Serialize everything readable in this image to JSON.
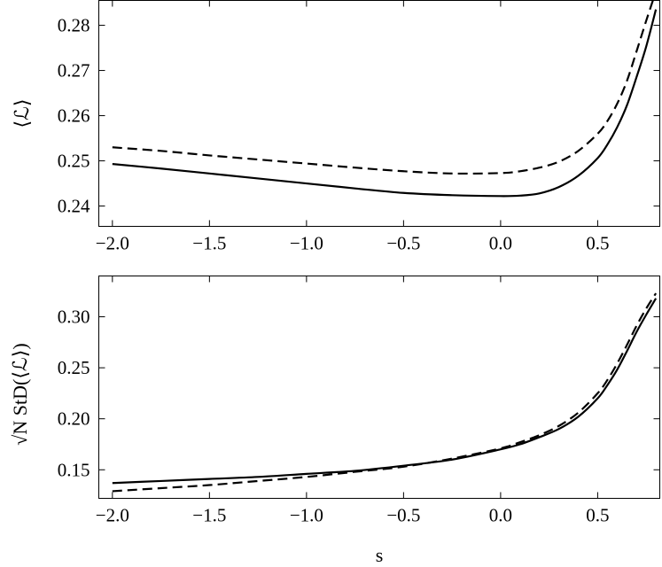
{
  "chart_data": [
    {
      "type": "line",
      "xlabel": "",
      "ylabel": "⟨ℒ⟩",
      "xlim": [
        -2.07,
        0.82
      ],
      "ylim": [
        0.2355,
        0.2855
      ],
      "xticks": [
        -2.0,
        -1.5,
        -1.0,
        -0.5,
        0.0,
        0.5
      ],
      "xtick_labels": [
        "−2.0",
        "−1.5",
        "−1.0",
        "−0.5",
        "0.0",
        "0.5"
      ],
      "yticks": [
        0.24,
        0.25,
        0.26,
        0.27,
        0.28
      ],
      "ytick_labels": [
        "0.24",
        "0.25",
        "0.26",
        "0.27",
        "0.28"
      ],
      "series": [
        {
          "style": "solid",
          "x": [
            -2.0,
            -1.75,
            -1.5,
            -1.25,
            -1.0,
            -0.75,
            -0.5,
            -0.25,
            0.0,
            0.1,
            0.2,
            0.3,
            0.4,
            0.5,
            0.55,
            0.6,
            0.65,
            0.7,
            0.75,
            0.8
          ],
          "y": [
            0.2493,
            0.2483,
            0.2472,
            0.2461,
            0.245,
            0.2439,
            0.2429,
            0.2424,
            0.2422,
            0.2423,
            0.2428,
            0.2442,
            0.2467,
            0.2506,
            0.2536,
            0.2574,
            0.2622,
            0.2685,
            0.2753,
            0.2835
          ]
        },
        {
          "style": "dashed",
          "x": [
            -2.0,
            -1.75,
            -1.5,
            -1.25,
            -1.0,
            -0.75,
            -0.5,
            -0.25,
            0.0,
            0.1,
            0.2,
            0.3,
            0.4,
            0.5,
            0.55,
            0.6,
            0.65,
            0.7,
            0.75,
            0.8
          ],
          "y": [
            0.253,
            0.2522,
            0.2512,
            0.2503,
            0.2494,
            0.2485,
            0.2477,
            0.2472,
            0.2473,
            0.2477,
            0.2485,
            0.2498,
            0.2522,
            0.256,
            0.2588,
            0.2626,
            0.2676,
            0.2742,
            0.281,
            0.2875
          ]
        }
      ]
    },
    {
      "type": "line",
      "xlabel": "s",
      "ylabel": "√N StD(⟨ℒ⟩)",
      "xlim": [
        -2.07,
        0.82
      ],
      "ylim": [
        0.122,
        0.34
      ],
      "xticks": [
        -2.0,
        -1.5,
        -1.0,
        -0.5,
        0.0,
        0.5
      ],
      "xtick_labels": [
        "−2.0",
        "−1.5",
        "−1.0",
        "−0.5",
        "0.0",
        "0.5"
      ],
      "yticks": [
        0.15,
        0.2,
        0.25,
        0.3
      ],
      "ytick_labels": [
        "0.15",
        "0.20",
        "0.25",
        "0.30"
      ],
      "series": [
        {
          "style": "solid",
          "x": [
            -2.0,
            -1.75,
            -1.5,
            -1.25,
            -1.0,
            -0.75,
            -0.5,
            -0.25,
            0.0,
            0.1,
            0.2,
            0.3,
            0.4,
            0.5,
            0.55,
            0.6,
            0.65,
            0.7,
            0.75,
            0.8
          ],
          "y": [
            0.137,
            0.139,
            0.141,
            0.143,
            0.146,
            0.149,
            0.154,
            0.16,
            0.17,
            0.175,
            0.182,
            0.19,
            0.202,
            0.22,
            0.233,
            0.248,
            0.266,
            0.285,
            0.302,
            0.318
          ]
        },
        {
          "style": "dashed",
          "x": [
            -2.0,
            -1.75,
            -1.5,
            -1.25,
            -1.0,
            -0.75,
            -0.5,
            -0.25,
            0.0,
            0.1,
            0.2,
            0.3,
            0.4,
            0.5,
            0.55,
            0.6,
            0.65,
            0.7,
            0.75,
            0.8
          ],
          "y": [
            0.129,
            0.132,
            0.135,
            0.139,
            0.143,
            0.148,
            0.153,
            0.161,
            0.171,
            0.177,
            0.184,
            0.193,
            0.206,
            0.225,
            0.238,
            0.254,
            0.272,
            0.291,
            0.308,
            0.323
          ]
        }
      ]
    }
  ]
}
